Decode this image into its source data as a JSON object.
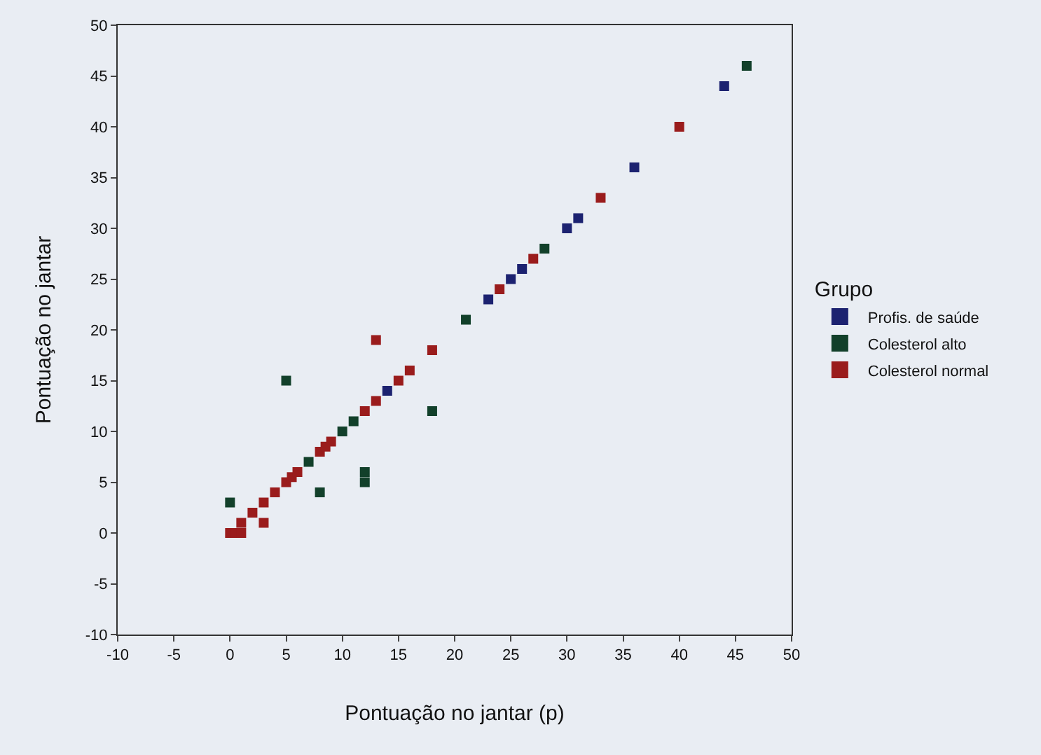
{
  "chart_data": {
    "type": "scatter",
    "xlabel": "Pontuação no jantar (p)",
    "ylabel": "Pontuação no jantar",
    "legend_title": "Grupo",
    "legend": "right",
    "marker": "square",
    "grid": false,
    "xlim": [
      -10,
      50
    ],
    "xticks": [
      -10,
      -5,
      0,
      5,
      10,
      15,
      20,
      25,
      30,
      35,
      40,
      45,
      50
    ],
    "ylim": [
      -10,
      50
    ],
    "yticks": [
      -10,
      -5,
      0,
      5,
      10,
      15,
      20,
      25,
      30,
      35,
      40,
      45,
      50
    ],
    "series": [
      {
        "name": "Profis. de saúde",
        "color": "#1c2270",
        "x": [
          14,
          23,
          25,
          26,
          30,
          31,
          36,
          44
        ],
        "values": [
          14,
          23,
          25,
          26,
          30,
          31,
          36,
          44
        ]
      },
      {
        "name": "Colesterol alto",
        "color": "#12402a",
        "x": [
          0,
          5,
          7,
          8,
          10,
          11,
          12,
          12,
          18,
          21,
          28,
          46
        ],
        "values": [
          3,
          15,
          7,
          4,
          10,
          11,
          6,
          5,
          12,
          21,
          28,
          46
        ]
      },
      {
        "name": "Colesterol normal",
        "color": "#9a1c1c",
        "x": [
          0,
          0.5,
          1,
          1,
          2,
          3,
          3,
          4,
          5,
          5.5,
          6,
          8,
          8.5,
          9,
          12,
          13,
          13,
          15,
          16,
          18,
          24,
          27,
          33,
          40
        ],
        "values": [
          0,
          0,
          0,
          1,
          2,
          3,
          1,
          4,
          5,
          5.5,
          6,
          8,
          8.5,
          9,
          12,
          13,
          19,
          15,
          16,
          18,
          24,
          27,
          33,
          40
        ]
      }
    ]
  }
}
